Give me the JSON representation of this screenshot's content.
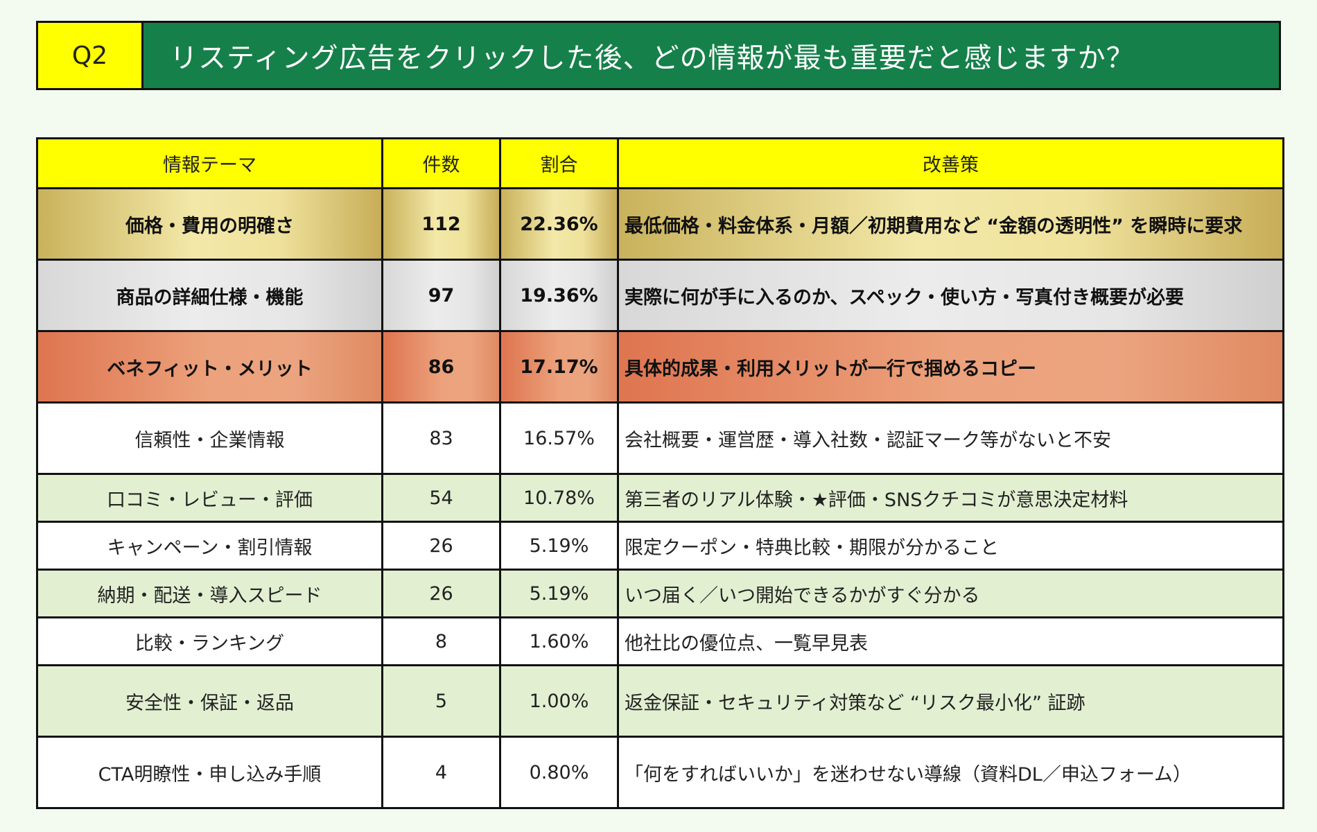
{
  "header": {
    "q_label": "Q2",
    "question": "リスティング広告をクリックした後、どの情報が最も重要だと感じますか？"
  },
  "table": {
    "columns": [
      "情報テーマ",
      "件数",
      "割合",
      "改善策"
    ],
    "rows": [
      {
        "theme": "価格・費用の明確さ",
        "count": "112",
        "ratio": "22.36%",
        "measure": "最低価格・料金体系・月額／初期費用など “金額の透明性” を瞬時に要求"
      },
      {
        "theme": "商品の詳細仕様・機能",
        "count": "97",
        "ratio": "19.36%",
        "measure": "実際に何が手に入るのか、スペック・使い方・写真付き概要が必要"
      },
      {
        "theme": "ベネフィット・メリット",
        "count": "86",
        "ratio": "17.17%",
        "measure": "具体的成果・利用メリットが一行で掴めるコピー"
      },
      {
        "theme": "信頼性・企業情報",
        "count": "83",
        "ratio": "16.57%",
        "measure": "会社概要・運営歴・導入社数・認証マーク等がないと不安"
      },
      {
        "theme": "口コミ・レビュー・評価",
        "count": "54",
        "ratio": "10.78%",
        "measure": "第三者のリアル体験・★評価・SNSクチコミが意思決定材料"
      },
      {
        "theme": "キャンペーン・割引情報",
        "count": "26",
        "ratio": "5.19%",
        "measure": "限定クーポン・特典比較・期限が分かること"
      },
      {
        "theme": "納期・配送・導入スピード",
        "count": "26",
        "ratio": "5.19%",
        "measure": "いつ届く／いつ開始できるかがすぐ分かる"
      },
      {
        "theme": "比較・ランキング",
        "count": "8",
        "ratio": "1.60%",
        "measure": "他社比の優位点、一覧早見表"
      },
      {
        "theme": "安全性・保証・返品",
        "count": "5",
        "ratio": "1.00%",
        "measure": "返金保証・セキュリティ対策など “リスク最小化” 証跡"
      },
      {
        "theme": "CTA明瞭性・申し込み手順",
        "count": "4",
        "ratio": "0.80%",
        "measure": "「何をすればいいか」を迷わせない導線（資料DL／申込フォーム）"
      }
    ]
  }
}
